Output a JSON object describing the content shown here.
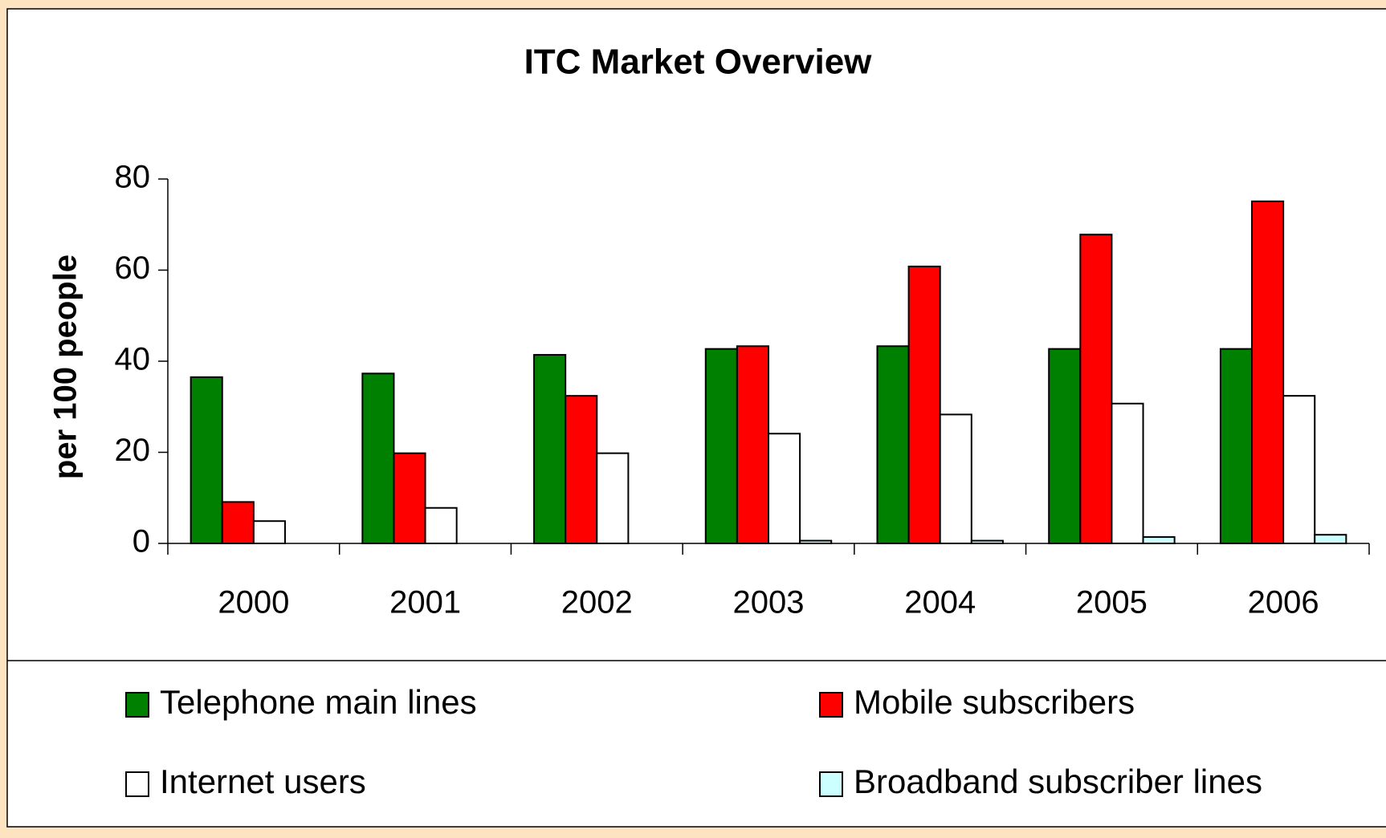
{
  "chart_data": {
    "type": "bar",
    "title": "ITC Market Overview",
    "ylabel": "per 100 people",
    "categories": [
      "2000",
      "2001",
      "2002",
      "2003",
      "2004",
      "2005",
      "2006"
    ],
    "series": [
      {
        "name": "Telephone main lines",
        "color": "#008000",
        "values": [
          36.5,
          37.3,
          41.4,
          42.7,
          43.3,
          42.7,
          42.7
        ]
      },
      {
        "name": "Mobile subscribers",
        "color": "#ff0000",
        "values": [
          9.1,
          19.8,
          32.4,
          43.3,
          60.8,
          67.8,
          75.1
        ]
      },
      {
        "name": "Internet users",
        "color": "#ffffff",
        "values": [
          4.9,
          7.8,
          19.8,
          24.1,
          28.3,
          30.7,
          32.4
        ]
      },
      {
        "name": "Broadband subscriber lines",
        "color": "#ccffff",
        "values": [
          0,
          0,
          0,
          0.6,
          0.6,
          1.4,
          1.9
        ]
      }
    ],
    "ylim": [
      0,
      80
    ],
    "yticks": [
      0,
      20,
      40,
      60,
      80
    ],
    "grid": false
  }
}
